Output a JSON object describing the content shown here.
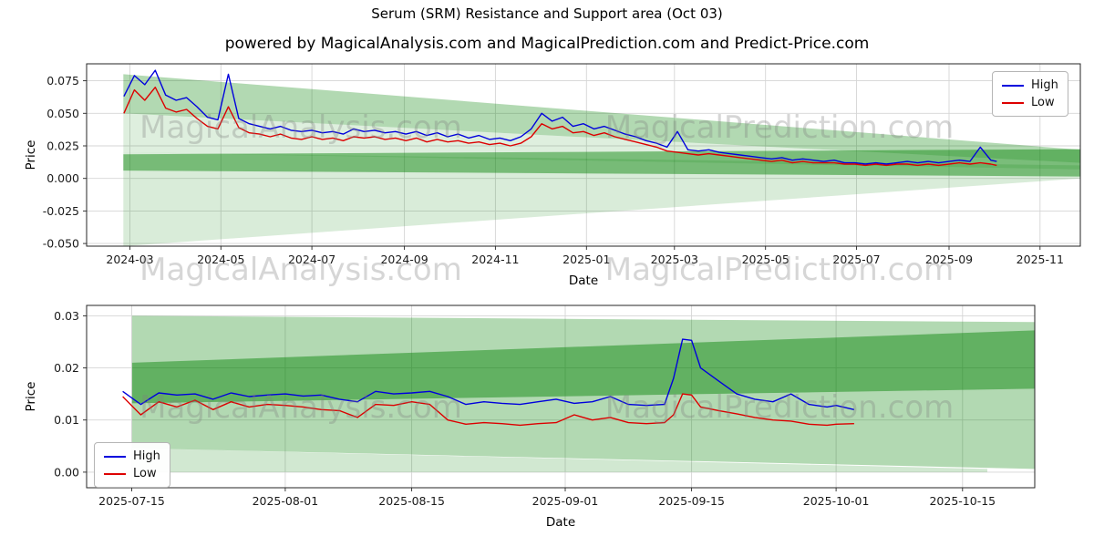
{
  "title": "Serum  (SRM) Resistance and Support area (Oct 03)",
  "subtitle": "powered by MagicalAnalysis.com and MagicalPrediction.com and Predict-Price.com",
  "watermarks": {
    "left": "MagicalAnalysis.com",
    "right": "MagicalPrediction.com"
  },
  "legend": {
    "high": "High",
    "low": "Low"
  },
  "colors": {
    "high": "#0000dd",
    "low": "#dd0000",
    "band": "#008000",
    "grid": "#d5d5d5",
    "spine": "#262626",
    "tick_text": "#1a1a1a"
  },
  "chart_data": [
    {
      "type": "line",
      "name": "history-resistance-support",
      "xlabel": "Date",
      "ylabel": "Price",
      "legend_position": "upper right",
      "x_domain": [
        "2024-02-01",
        "2025-11-28"
      ],
      "ylim": [
        -0.052,
        0.088
      ],
      "x_ticks": [
        {
          "d": "2024-03-01",
          "label": "2024-03"
        },
        {
          "d": "2024-05-01",
          "label": "2024-05"
        },
        {
          "d": "2024-07-01",
          "label": "2024-07"
        },
        {
          "d": "2024-09-01",
          "label": "2024-09"
        },
        {
          "d": "2024-11-01",
          "label": "2024-11"
        },
        {
          "d": "2025-01-01",
          "label": "2025-01"
        },
        {
          "d": "2025-03-01",
          "label": "2025-03"
        },
        {
          "d": "2025-05-01",
          "label": "2025-05"
        },
        {
          "d": "2025-07-01",
          "label": "2025-07"
        },
        {
          "d": "2025-09-01",
          "label": "2025-09"
        },
        {
          "d": "2025-11-01",
          "label": "2025-11"
        }
      ],
      "y_ticks": [
        {
          "v": 0.075,
          "label": "0.075"
        },
        {
          "v": 0.05,
          "label": "0.050"
        },
        {
          "v": 0.025,
          "label": "0.025"
        },
        {
          "v": 0,
          "label": "0.000"
        },
        {
          "v": -0.025,
          "label": "-0.025"
        },
        {
          "v": -0.05,
          "label": "-0.050"
        }
      ],
      "dates": [
        "2024-02-26",
        "2024-03-04",
        "2024-03-11",
        "2024-03-18",
        "2024-03-25",
        "2024-04-01",
        "2024-04-08",
        "2024-04-15",
        "2024-04-22",
        "2024-04-29",
        "2024-05-06",
        "2024-05-13",
        "2024-05-20",
        "2024-05-27",
        "2024-06-03",
        "2024-06-10",
        "2024-06-17",
        "2024-06-24",
        "2024-07-01",
        "2024-07-08",
        "2024-07-15",
        "2024-07-22",
        "2024-07-29",
        "2024-08-05",
        "2024-08-12",
        "2024-08-19",
        "2024-08-26",
        "2024-09-02",
        "2024-09-09",
        "2024-09-16",
        "2024-09-23",
        "2024-09-30",
        "2024-10-07",
        "2024-10-14",
        "2024-10-21",
        "2024-10-28",
        "2024-11-04",
        "2024-11-11",
        "2024-11-18",
        "2024-11-25",
        "2024-12-02",
        "2024-12-09",
        "2024-12-16",
        "2024-12-23",
        "2024-12-30",
        "2025-01-06",
        "2025-01-13",
        "2025-01-20",
        "2025-01-27",
        "2025-02-03",
        "2025-02-10",
        "2025-02-17",
        "2025-02-24",
        "2025-03-03",
        "2025-03-10",
        "2025-03-17",
        "2025-03-24",
        "2025-03-31",
        "2025-04-07",
        "2025-04-14",
        "2025-04-21",
        "2025-04-28",
        "2025-05-05",
        "2025-05-12",
        "2025-05-19",
        "2025-05-26",
        "2025-06-02",
        "2025-06-09",
        "2025-06-16",
        "2025-06-23",
        "2025-06-30",
        "2025-07-07",
        "2025-07-14",
        "2025-07-21",
        "2025-07-28",
        "2025-08-04",
        "2025-08-11",
        "2025-08-18",
        "2025-08-25",
        "2025-09-01",
        "2025-09-08",
        "2025-09-15",
        "2025-09-22",
        "2025-09-29",
        "2025-10-03"
      ],
      "series": [
        {
          "name": "High",
          "color": "#0000dd",
          "values": [
            0.063,
            0.079,
            0.072,
            0.083,
            0.064,
            0.06,
            0.062,
            0.055,
            0.047,
            0.045,
            0.08,
            0.046,
            0.042,
            0.04,
            0.038,
            0.04,
            0.037,
            0.036,
            0.037,
            0.035,
            0.036,
            0.034,
            0.038,
            0.036,
            0.037,
            0.035,
            0.036,
            0.034,
            0.036,
            0.033,
            0.035,
            0.032,
            0.034,
            0.031,
            0.033,
            0.03,
            0.031,
            0.029,
            0.032,
            0.038,
            0.05,
            0.044,
            0.047,
            0.04,
            0.042,
            0.038,
            0.04,
            0.037,
            0.034,
            0.032,
            0.029,
            0.027,
            0.024,
            0.036,
            0.022,
            0.021,
            0.022,
            0.02,
            0.019,
            0.018,
            0.017,
            0.016,
            0.015,
            0.016,
            0.014,
            0.015,
            0.014,
            0.013,
            0.014,
            0.012,
            0.012,
            0.011,
            0.012,
            0.011,
            0.012,
            0.013,
            0.012,
            0.013,
            0.012,
            0.013,
            0.014,
            0.013,
            0.024,
            0.014,
            0.013
          ]
        },
        {
          "name": "Low",
          "color": "#dd0000",
          "values": [
            0.05,
            0.068,
            0.06,
            0.07,
            0.054,
            0.051,
            0.053,
            0.046,
            0.04,
            0.038,
            0.055,
            0.039,
            0.035,
            0.034,
            0.032,
            0.034,
            0.031,
            0.03,
            0.032,
            0.03,
            0.031,
            0.029,
            0.032,
            0.031,
            0.032,
            0.03,
            0.031,
            0.029,
            0.031,
            0.028,
            0.03,
            0.028,
            0.029,
            0.027,
            0.028,
            0.026,
            0.027,
            0.025,
            0.027,
            0.032,
            0.042,
            0.038,
            0.04,
            0.035,
            0.036,
            0.033,
            0.035,
            0.032,
            0.03,
            0.028,
            0.026,
            0.024,
            0.021,
            0.02,
            0.019,
            0.018,
            0.019,
            0.018,
            0.017,
            0.016,
            0.015,
            0.014,
            0.013,
            0.014,
            0.012,
            0.013,
            0.012,
            0.012,
            0.012,
            0.011,
            0.011,
            0.01,
            0.011,
            0.01,
            0.011,
            0.011,
            0.01,
            0.011,
            0.01,
            0.011,
            0.012,
            0.011,
            0.012,
            0.011,
            0.01
          ]
        }
      ],
      "bands": [
        {
          "x": [
            0.037,
            1
          ],
          "top": [
            0.08,
            0.022
          ],
          "bottom": [
            0.05,
            0.012
          ],
          "alpha": 0.3
        },
        {
          "x": [
            0.037,
            1
          ],
          "top": [
            0.05,
            0.012
          ],
          "bottom": [
            0.02,
            0.007
          ],
          "alpha": 0.13
        },
        {
          "x": [
            0.037,
            1
          ],
          "top": [
            0.0185,
            0.0225
          ],
          "bottom": [
            0.006,
            0.0015
          ],
          "alpha": 0.45
        },
        {
          "x": [
            0.037,
            1
          ],
          "top": [
            0.02,
            0.01
          ],
          "bottom": [
            -0.052,
            0.0
          ],
          "alpha": 0.15
        }
      ]
    },
    {
      "type": "line",
      "name": "recent-resistance-support",
      "xlabel": "Date",
      "ylabel": "Price",
      "legend_position": "lower left",
      "x_domain": [
        "2025-07-10",
        "2025-10-23"
      ],
      "ylim": [
        -0.003,
        0.032
      ],
      "x_ticks": [
        {
          "d": "2025-07-15",
          "label": "2025-07-15"
        },
        {
          "d": "2025-08-01",
          "label": "2025-08-01"
        },
        {
          "d": "2025-08-15",
          "label": "2025-08-15"
        },
        {
          "d": "2025-09-01",
          "label": "2025-09-01"
        },
        {
          "d": "2025-09-15",
          "label": "2025-09-15"
        },
        {
          "d": "2025-10-01",
          "label": "2025-10-01"
        },
        {
          "d": "2025-10-15",
          "label": "2025-10-15"
        }
      ],
      "y_ticks": [
        {
          "v": 0,
          "label": "0.00"
        },
        {
          "v": 0.01,
          "label": "0.01"
        },
        {
          "v": 0.02,
          "label": "0.02"
        },
        {
          "v": 0.03,
          "label": "0.03"
        }
      ],
      "dates": [
        "2025-07-14",
        "2025-07-16",
        "2025-07-18",
        "2025-07-20",
        "2025-07-22",
        "2025-07-24",
        "2025-07-26",
        "2025-07-28",
        "2025-07-30",
        "2025-08-01",
        "2025-08-03",
        "2025-08-05",
        "2025-08-07",
        "2025-08-09",
        "2025-08-11",
        "2025-08-13",
        "2025-08-15",
        "2025-08-17",
        "2025-08-19",
        "2025-08-21",
        "2025-08-23",
        "2025-08-25",
        "2025-08-27",
        "2025-08-29",
        "2025-08-31",
        "2025-09-02",
        "2025-09-04",
        "2025-09-06",
        "2025-09-08",
        "2025-09-10",
        "2025-09-12",
        "2025-09-13",
        "2025-09-14",
        "2025-09-15",
        "2025-09-16",
        "2025-09-18",
        "2025-09-20",
        "2025-09-22",
        "2025-09-24",
        "2025-09-26",
        "2025-09-28",
        "2025-09-30",
        "2025-10-01",
        "2025-10-03"
      ],
      "series": [
        {
          "name": "High",
          "color": "#0000dd",
          "values": [
            0.0155,
            0.013,
            0.0152,
            0.0148,
            0.015,
            0.014,
            0.0152,
            0.0145,
            0.0148,
            0.015,
            0.0146,
            0.0148,
            0.014,
            0.0135,
            0.0155,
            0.015,
            0.0152,
            0.0155,
            0.0145,
            0.013,
            0.0135,
            0.0132,
            0.013,
            0.0135,
            0.014,
            0.0132,
            0.0135,
            0.0145,
            0.013,
            0.0128,
            0.013,
            0.018,
            0.0255,
            0.0253,
            0.02,
            0.0175,
            0.015,
            0.014,
            0.0135,
            0.015,
            0.013,
            0.0125,
            0.0128,
            0.012
          ]
        },
        {
          "name": "Low",
          "color": "#dd0000",
          "values": [
            0.0145,
            0.011,
            0.0135,
            0.0125,
            0.0138,
            0.012,
            0.0135,
            0.0125,
            0.013,
            0.0128,
            0.0125,
            0.012,
            0.0118,
            0.0105,
            0.013,
            0.0128,
            0.0135,
            0.013,
            0.01,
            0.0092,
            0.0095,
            0.0093,
            0.009,
            0.0093,
            0.0095,
            0.011,
            0.01,
            0.0105,
            0.0095,
            0.0093,
            0.0095,
            0.011,
            0.015,
            0.0148,
            0.0125,
            0.0118,
            0.0112,
            0.0105,
            0.01,
            0.0098,
            0.0092,
            0.009,
            0.0092,
            0.0093
          ]
        }
      ],
      "bands": [
        {
          "x": [
            0.048,
            1
          ],
          "top": [
            0.03,
            0.0288
          ],
          "bottom": [
            0.0132,
            0.016
          ],
          "alpha": 0.3
        },
        {
          "x": [
            0.048,
            1
          ],
          "top": [
            0.021,
            0.0272
          ],
          "bottom": [
            0.0132,
            0.016
          ],
          "alpha": 0.45
        },
        {
          "x": [
            0.048,
            1
          ],
          "top": [
            0.0132,
            0.016
          ],
          "bottom": [
            0.0046,
            0.0006
          ],
          "alpha": 0.3
        },
        {
          "x": [
            0.048,
            0.95
          ],
          "top": [
            0.0046,
            0.0006
          ],
          "bottom": [
            0.0,
            0.0
          ],
          "alpha": 0.18
        }
      ]
    }
  ]
}
